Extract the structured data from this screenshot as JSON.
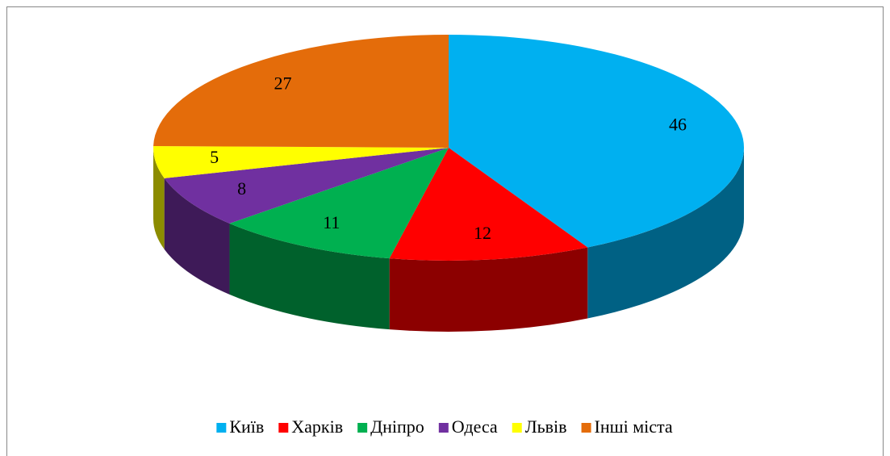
{
  "chart_data": {
    "type": "pie",
    "categories": [
      "Київ",
      "Харків",
      "Дніпро",
      "Одеса",
      "Львів",
      "Інші міста"
    ],
    "values": [
      46,
      12,
      11,
      8,
      5,
      27
    ],
    "colors": [
      "#00b0f0",
      "#ff0000",
      "#00b050",
      "#7030a0",
      "#ffff00",
      "#e46c0a"
    ],
    "legend": "bottom"
  }
}
